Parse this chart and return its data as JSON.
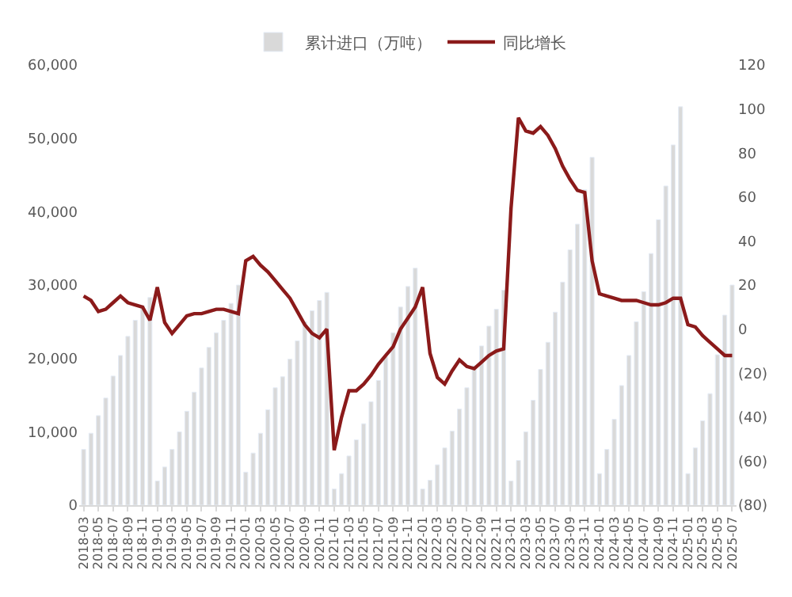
{
  "chart_data": {
    "type": "bar",
    "categories": [
      "2018-03",
      null,
      "2018-05",
      null,
      "2018-07",
      null,
      "2018-09",
      null,
      "2018-11",
      null,
      "2019-01",
      null,
      "2019-03",
      null,
      "2019-05",
      null,
      "2019-07",
      null,
      "2019-09",
      null,
      "2019-11",
      null,
      "2020-01",
      null,
      "2020-03",
      null,
      "2020-05",
      null,
      "2020-07",
      null,
      "2020-09",
      null,
      "2020-11",
      null,
      "2021-01",
      null,
      "2021-03",
      null,
      "2021-05",
      null,
      "2021-07",
      null,
      "2021-09",
      null,
      "2021-11",
      null,
      "2022-01",
      null,
      "2022-03",
      null,
      "2022-05",
      null,
      "2022-07",
      null,
      "2022-09",
      null,
      "2022-11",
      null,
      "2023-01",
      null,
      "2023-03",
      null,
      "2023-05",
      null,
      "2023-07",
      null,
      "2023-09",
      null,
      "2023-11",
      null,
      "2024-01",
      null,
      "2024-03",
      null,
      "2024-05",
      null,
      "2024-07",
      null,
      "2024-09",
      null,
      "2024-11",
      null,
      "2025-01",
      null,
      "2025-03",
      null,
      "2025-05",
      null,
      "2025-07"
    ],
    "series": [
      {
        "name": "累计进口（万吨）",
        "color": "#d9d9d9",
        "values": [
          7600,
          9800,
          12200,
          14600,
          17600,
          20400,
          23000,
          25200,
          27200,
          28300,
          3300,
          5200,
          7600,
          10000,
          12800,
          15400,
          18700,
          21500,
          23500,
          25200,
          27500,
          30000,
          4500,
          7100,
          9800,
          13000,
          16000,
          17500,
          19900,
          22400,
          25000,
          26500,
          27900,
          29000,
          2200,
          4300,
          6700,
          8900,
          11100,
          14100,
          17000,
          20200,
          23500,
          27000,
          29800,
          32300,
          2200,
          3400,
          5500,
          7800,
          10100,
          13100,
          16000,
          19000,
          21700,
          24400,
          26700,
          29300,
          3300,
          6100,
          10000,
          14300,
          18500,
          22200,
          26300,
          30400,
          34800,
          38300,
          43000,
          47400,
          4300,
          7600,
          11700,
          16300,
          20400,
          25000,
          29100,
          34300,
          38900,
          43500,
          49100,
          54300,
          4300,
          7800,
          11500,
          15200,
          20500,
          25900,
          30000
        ]
      },
      {
        "name": "同比增长",
        "type": "line",
        "axis": "y2",
        "color": "#8b1a1a",
        "values": [
          15,
          13,
          8,
          9,
          12,
          15,
          12,
          11,
          10,
          4,
          19,
          3,
          -2,
          2,
          6,
          7,
          7,
          8,
          9,
          9,
          8,
          7,
          31,
          33,
          29,
          26,
          22,
          18,
          14,
          8,
          2,
          -2,
          -4,
          0,
          -55,
          -40,
          -28,
          -28,
          -25,
          -21,
          -16,
          -12,
          -8,
          0,
          5,
          10,
          19,
          -11,
          -22,
          -25,
          -19,
          -14,
          -17,
          -18,
          -15,
          -12,
          -10,
          -9,
          55,
          96,
          90,
          89,
          92,
          88,
          82,
          74,
          68,
          63,
          62,
          31,
          16,
          15,
          14,
          13,
          13,
          13,
          12,
          11,
          11,
          12,
          14,
          14,
          2,
          1,
          -3,
          -6,
          -9,
          -12,
          -12
        ]
      }
    ],
    "ylim": [
      0,
      60000
    ],
    "yticks": [
      {
        "value": 0,
        "label": "0"
      },
      {
        "value": 10000,
        "label": "10,000"
      },
      {
        "value": 20000,
        "label": "20,000"
      },
      {
        "value": 30000,
        "label": "30,000"
      },
      {
        "value": 40000,
        "label": "40,000"
      },
      {
        "value": 50000,
        "label": "50,000"
      },
      {
        "value": 60000,
        "label": "60,000"
      }
    ],
    "y2lim": [
      -80,
      120
    ],
    "y2ticks": [
      {
        "value": -80,
        "label": "(80)"
      },
      {
        "value": -60,
        "label": "(60)"
      },
      {
        "value": -40,
        "label": "(40)"
      },
      {
        "value": -20,
        "label": "(20)"
      },
      0,
      20,
      40,
      60,
      80,
      100,
      120
    ],
    "legend": "top",
    "marker": "none",
    "line_style": "solid"
  }
}
